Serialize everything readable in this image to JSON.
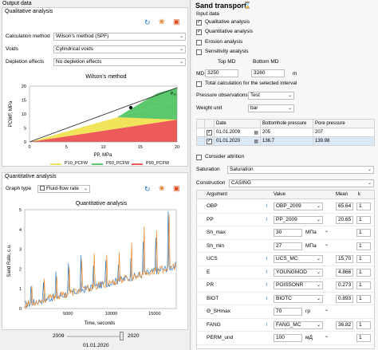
{
  "left": {
    "output_title": "Output data",
    "qual_section": "Qualitative analysis",
    "calc_method_label": "Calculation method",
    "calc_method_value": "Wilson's method (SPF)",
    "voids_label": "Voids",
    "voids_value": "Cylindrical voids",
    "depletion_label": "Depletion effects",
    "depletion_value": "No depletion effects",
    "wilson": {
      "title": "Wilson's method",
      "ylabel": "PCWF, MPa",
      "xlabel": "PP, MPa",
      "x_ticks": [
        "0",
        "5",
        "10",
        "15",
        "20"
      ],
      "y_ticks": [
        "0",
        "5",
        "10",
        "15",
        "20"
      ],
      "annotation": "P₉₀",
      "legend": [
        "P10_PCFW",
        "P50_PCFW",
        "P90_PCFW"
      ],
      "colors": [
        "#f2e45a",
        "#5cc86e",
        "#ec5a5a"
      ]
    },
    "quant_section": "Quantitative analysis",
    "graph_type_label": "Graph type",
    "graph_type_value": "Fluid-flow rate",
    "quant_chart": {
      "title": "Quantitative analysis",
      "ylabel": "Sand Rate, c.u.",
      "xlabel": "Time, seconds",
      "x_ticks": [
        "5000",
        "10000",
        "15000"
      ],
      "y_ticks": [
        "0",
        "1",
        "2",
        "3",
        "4",
        "5"
      ]
    },
    "slider_min": "2009",
    "slider_max": "2020",
    "slider_date": "01.01.2020"
  },
  "right": {
    "title": "Sand transport",
    "input_title": "Input data",
    "cb_qualitative": "Qualitative analysis",
    "cb_quantitative": "Quantitative analysis",
    "cb_erosion": "Erosion analysis",
    "cb_sensitivity": "Sensitivity analysis",
    "top_md_label": "Top MD",
    "bottom_md_label": "Bottom MD",
    "md_label": "MD",
    "top_md": "3250",
    "bottom_md": "3260",
    "md_unit": "m",
    "cb_total_calc": "Total calculation for the selected interval",
    "pressure_obs_label": "Pressure observations",
    "pressure_obs_value": "Test",
    "weight_unit_label": "Weight unit",
    "weight_unit_value": "bar",
    "date_table": {
      "headers": [
        "Date",
        "Bottomhole pressure",
        "Pore pressure"
      ],
      "rows": [
        {
          "date": "01.01.2009",
          "bhp": "205",
          "pp": "207"
        },
        {
          "date": "01.01.2020",
          "bhp": "136.7",
          "pp": "139.98"
        }
      ]
    },
    "cb_consider_attrition": "Consider attrition",
    "saturation_label": "Saturation",
    "saturation_value": "Saturation",
    "construction_label": "Construction",
    "construction_value": "CASING",
    "param_table": {
      "headers": [
        "Argument",
        "Value",
        "Mean",
        "k"
      ],
      "rows": [
        {
          "arg": "OBP",
          "wavy": true,
          "value": "OBP_2009",
          "unit": "",
          "mean": "65.64",
          "k": "1"
        },
        {
          "arg": "PP",
          "wavy": true,
          "value": "PP_2009",
          "unit": "",
          "mean": "20.65",
          "k": "1"
        },
        {
          "arg": "Sh_max",
          "wavy": false,
          "value": "30",
          "unit": "МПа",
          "mean": "",
          "k": "1"
        },
        {
          "arg": "Sh_min",
          "wavy": false,
          "value": "27",
          "unit": "МПа",
          "mean": "",
          "k": "1"
        },
        {
          "arg": "UCS",
          "wavy": true,
          "value": "UCS_MC",
          "unit": "",
          "mean": "15.70",
          "k": "1"
        },
        {
          "arg": "E",
          "wavy": true,
          "value": "YOUNGMOD",
          "unit": "",
          "mean": "4.866",
          "k": "1"
        },
        {
          "arg": "PR",
          "wavy": true,
          "value": "POISSONR",
          "unit": "",
          "mean": "0.273",
          "k": "1"
        },
        {
          "arg": "BIOT",
          "wavy": true,
          "value": "BIOTC",
          "unit": "",
          "mean": "0.893",
          "k": "1"
        },
        {
          "arg": "Θ_SHmax",
          "wavy": false,
          "value": "70",
          "unit": "гр",
          "mean": "",
          "k": ""
        },
        {
          "arg": "FANG",
          "wavy": true,
          "value": "FANG_MC",
          "unit": "",
          "mean": "36.82",
          "k": "1"
        },
        {
          "arg": "PERM_und",
          "wavy": false,
          "value": "100",
          "unit": "мД",
          "mean": "",
          "k": "1"
        }
      ]
    }
  }
}
